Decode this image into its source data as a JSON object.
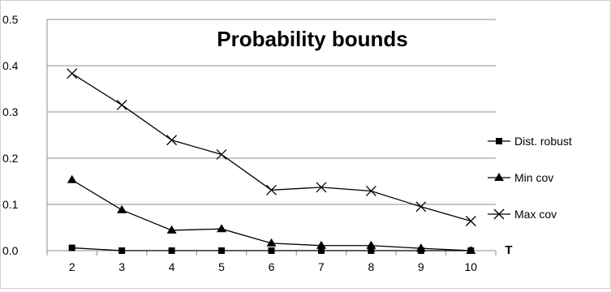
{
  "chart_data": {
    "type": "line",
    "title": "Probability bounds",
    "xlabel": "T",
    "ylabel": "",
    "x": [
      2,
      3,
      4,
      5,
      6,
      7,
      8,
      9,
      10
    ],
    "ylim": [
      0.0,
      0.5
    ],
    "yticks": [
      "0.0",
      "0.1",
      "0.2",
      "0.3",
      "0.4",
      "0.5"
    ],
    "grid": true,
    "legend_position": "right",
    "series": [
      {
        "name": "Dist. robust",
        "marker": "square",
        "color": "#000000",
        "values": [
          0.006,
          0.0,
          0.0,
          0.0,
          0.0,
          0.0,
          0.0,
          0.0,
          0.0
        ]
      },
      {
        "name": "Min cov",
        "marker": "triangle",
        "color": "#000000",
        "values": [
          0.153,
          0.088,
          0.044,
          0.047,
          0.016,
          0.011,
          0.011,
          0.005,
          0.0
        ]
      },
      {
        "name": "Max cov",
        "marker": "x",
        "color": "#000000",
        "values": [
          0.383,
          0.315,
          0.239,
          0.208,
          0.131,
          0.137,
          0.129,
          0.095,
          0.064
        ]
      }
    ]
  }
}
